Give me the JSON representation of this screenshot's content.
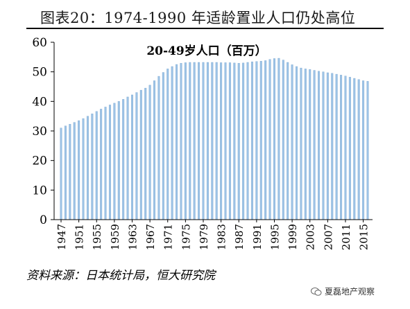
{
  "figure": {
    "title": "图表20：1974-1990 年适龄置业人口仍处高位",
    "source": "资料来源：日本统计局，恒大研究院",
    "watermark": "夏磊地产观察"
  },
  "colors": {
    "bar": "#9dc3e6",
    "bar_edge": "#7ea9d2",
    "axis": "#000000"
  },
  "chart_data": {
    "type": "bar",
    "title": "20-49岁人口（百万）",
    "xlabel": "",
    "ylabel": "",
    "ylim": [
      0,
      60
    ],
    "yticks": [
      0,
      10,
      20,
      30,
      40,
      50,
      60
    ],
    "xtick_labels": [
      "1947",
      "1951",
      "1955",
      "1959",
      "1963",
      "1967",
      "1971",
      "1975",
      "1979",
      "1983",
      "1987",
      "1991",
      "1995",
      "1999",
      "2003",
      "2007",
      "2011",
      "2015"
    ],
    "categories": [
      "1947",
      "1948",
      "1949",
      "1950",
      "1951",
      "1952",
      "1953",
      "1954",
      "1955",
      "1956",
      "1957",
      "1958",
      "1959",
      "1960",
      "1961",
      "1962",
      "1963",
      "1964",
      "1965",
      "1966",
      "1967",
      "1968",
      "1969",
      "1970",
      "1971",
      "1972",
      "1973",
      "1974",
      "1975",
      "1976",
      "1977",
      "1978",
      "1979",
      "1980",
      "1981",
      "1982",
      "1983",
      "1984",
      "1985",
      "1986",
      "1987",
      "1988",
      "1989",
      "1990",
      "1991",
      "1992",
      "1993",
      "1994",
      "1995",
      "1996",
      "1997",
      "1998",
      "1999",
      "2000",
      "2001",
      "2002",
      "2003",
      "2004",
      "2005",
      "2006",
      "2007",
      "2008",
      "2009",
      "2010",
      "2011",
      "2012",
      "2013",
      "2014",
      "2015",
      "2016"
    ],
    "values": [
      31.0,
      31.7,
      32.3,
      32.9,
      33.5,
      34.2,
      35.0,
      35.8,
      36.6,
      37.4,
      38.1,
      38.8,
      39.4,
      40.0,
      40.7,
      41.5,
      42.2,
      43.0,
      43.8,
      44.5,
      45.5,
      47.0,
      48.5,
      49.8,
      51.0,
      51.8,
      52.5,
      52.9,
      53.1,
      53.2,
      53.2,
      53.2,
      53.2,
      53.2,
      53.2,
      53.2,
      53.1,
      53.1,
      53.1,
      53.0,
      52.9,
      53.0,
      53.2,
      53.4,
      53.5,
      53.6,
      53.8,
      54.2,
      54.5,
      54.6,
      54.0,
      53.2,
      52.4,
      51.8,
      51.3,
      51.0,
      50.8,
      50.5,
      50.2,
      50.0,
      49.7,
      49.5,
      49.2,
      48.9,
      48.6,
      48.2,
      47.8,
      47.4,
      47.0,
      46.8
    ]
  }
}
